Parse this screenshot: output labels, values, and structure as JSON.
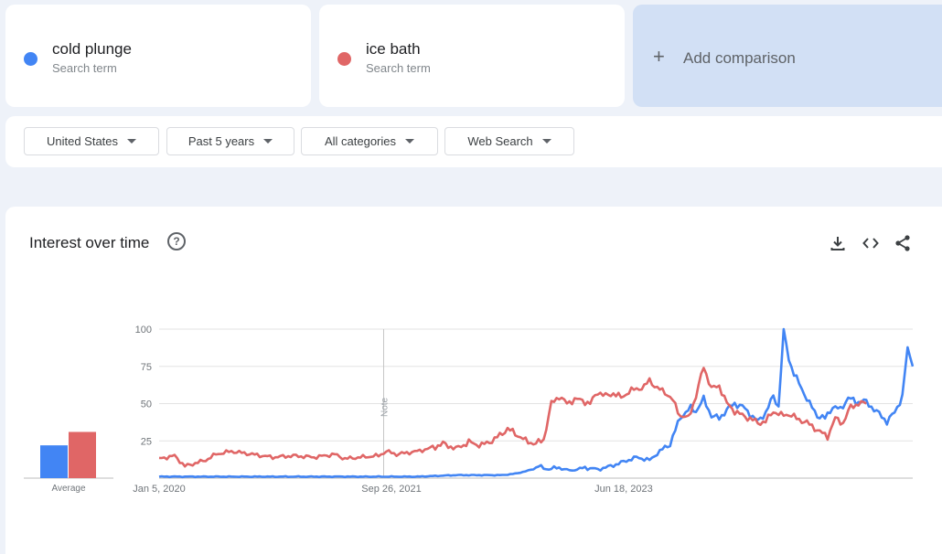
{
  "terms": [
    {
      "name": "cold plunge",
      "subtitle": "Search term",
      "color": "#4285f4"
    },
    {
      "name": "ice bath",
      "subtitle": "Search term",
      "color": "#e06666"
    }
  ],
  "add_comparison": {
    "label": "Add comparison",
    "icon": "plus-icon"
  },
  "filters": {
    "region": "United States",
    "time_range": "Past 5 years",
    "category": "All categories",
    "search_type": "Web Search"
  },
  "chart": {
    "title": "Interest over time",
    "average_label": "Average",
    "note_label": "Note",
    "icons": [
      "help-icon",
      "download-icon",
      "embed-icon",
      "share-icon"
    ]
  },
  "chart_data": {
    "type": "line",
    "ylim": [
      0,
      100
    ],
    "yticks": [
      25,
      50,
      75,
      100
    ],
    "xticks": [
      "Jan 5, 2020",
      "Sep 26, 2021",
      "Jun 18, 2023"
    ],
    "grid": true,
    "averages": [
      {
        "name": "cold plunge",
        "value": 22
      },
      {
        "name": "ice bath",
        "value": 31
      }
    ],
    "weeks": 261,
    "series": [
      {
        "name": "cold plunge",
        "color": "#4285f4",
        "keypoints": [
          [
            0,
            1
          ],
          [
            30,
            1
          ],
          [
            60,
            1
          ],
          [
            88,
            1
          ],
          [
            100,
            1
          ],
          [
            115,
            2
          ],
          [
            125,
            2
          ],
          [
            133,
            2
          ],
          [
            138,
            3
          ],
          [
            143,
            5
          ],
          [
            147,
            8
          ],
          [
            150,
            6
          ],
          [
            155,
            7
          ],
          [
            160,
            5
          ],
          [
            165,
            7
          ],
          [
            170,
            6
          ],
          [
            175,
            8
          ],
          [
            180,
            11
          ],
          [
            185,
            14
          ],
          [
            190,
            12
          ],
          [
            194,
            18
          ],
          [
            198,
            23
          ],
          [
            202,
            41
          ],
          [
            206,
            47
          ],
          [
            208,
            45
          ],
          [
            211,
            53
          ],
          [
            214,
            42
          ],
          [
            217,
            40
          ],
          [
            220,
            46
          ],
          [
            223,
            50
          ],
          [
            226,
            48
          ],
          [
            229,
            43
          ],
          [
            232,
            38
          ],
          [
            235,
            44
          ],
          [
            238,
            55
          ],
          [
            240,
            48
          ],
          [
            242,
            100
          ],
          [
            244,
            80
          ],
          [
            246,
            70
          ],
          [
            249,
            60
          ],
          [
            252,
            50
          ],
          [
            255,
            42
          ],
          [
            258,
            40
          ],
          [
            261,
            48
          ],
          [
            264,
            46
          ],
          [
            267,
            54
          ],
          [
            270,
            51
          ],
          [
            273,
            52
          ],
          [
            276,
            48
          ],
          [
            279,
            43
          ],
          [
            282,
            38
          ],
          [
            285,
            44
          ],
          [
            288,
            55
          ],
          [
            290,
            87
          ],
          [
            292,
            75
          ]
        ]
      },
      {
        "name": "ice bath",
        "color": "#e06666",
        "keypoints": [
          [
            0,
            13
          ],
          [
            6,
            15
          ],
          [
            10,
            8
          ],
          [
            14,
            10
          ],
          [
            18,
            12
          ],
          [
            22,
            16
          ],
          [
            28,
            18
          ],
          [
            36,
            16
          ],
          [
            44,
            14
          ],
          [
            52,
            15
          ],
          [
            60,
            14
          ],
          [
            68,
            16
          ],
          [
            72,
            13
          ],
          [
            78,
            14
          ],
          [
            85,
            15
          ],
          [
            88,
            18
          ],
          [
            92,
            16
          ],
          [
            100,
            18
          ],
          [
            105,
            20
          ],
          [
            110,
            23
          ],
          [
            115,
            20
          ],
          [
            120,
            24
          ],
          [
            125,
            22
          ],
          [
            130,
            26
          ],
          [
            135,
            33
          ],
          [
            138,
            30
          ],
          [
            142,
            25
          ],
          [
            146,
            23
          ],
          [
            149,
            26
          ],
          [
            152,
            50
          ],
          [
            155,
            55
          ],
          [
            158,
            50
          ],
          [
            161,
            53
          ],
          [
            164,
            52
          ],
          [
            167,
            50
          ],
          [
            170,
            58
          ],
          [
            173,
            55
          ],
          [
            176,
            57
          ],
          [
            179,
            54
          ],
          [
            182,
            58
          ],
          [
            185,
            60
          ],
          [
            188,
            61
          ],
          [
            190,
            66
          ],
          [
            193,
            60
          ],
          [
            196,
            58
          ],
          [
            199,
            52
          ],
          [
            202,
            42
          ],
          [
            205,
            40
          ],
          [
            208,
            55
          ],
          [
            211,
            75
          ],
          [
            214,
            60
          ],
          [
            217,
            62
          ],
          [
            220,
            50
          ],
          [
            223,
            45
          ],
          [
            226,
            42
          ],
          [
            229,
            40
          ],
          [
            232,
            37
          ],
          [
            235,
            38
          ],
          [
            238,
            45
          ],
          [
            241,
            42
          ],
          [
            244,
            43
          ],
          [
            247,
            40
          ],
          [
            250,
            38
          ],
          [
            253,
            35
          ],
          [
            256,
            31
          ],
          [
            259,
            28
          ],
          [
            262,
            40
          ],
          [
            265,
            37
          ],
          [
            268,
            48
          ],
          [
            271,
            50
          ],
          [
            274,
            50
          ]
        ]
      }
    ]
  }
}
